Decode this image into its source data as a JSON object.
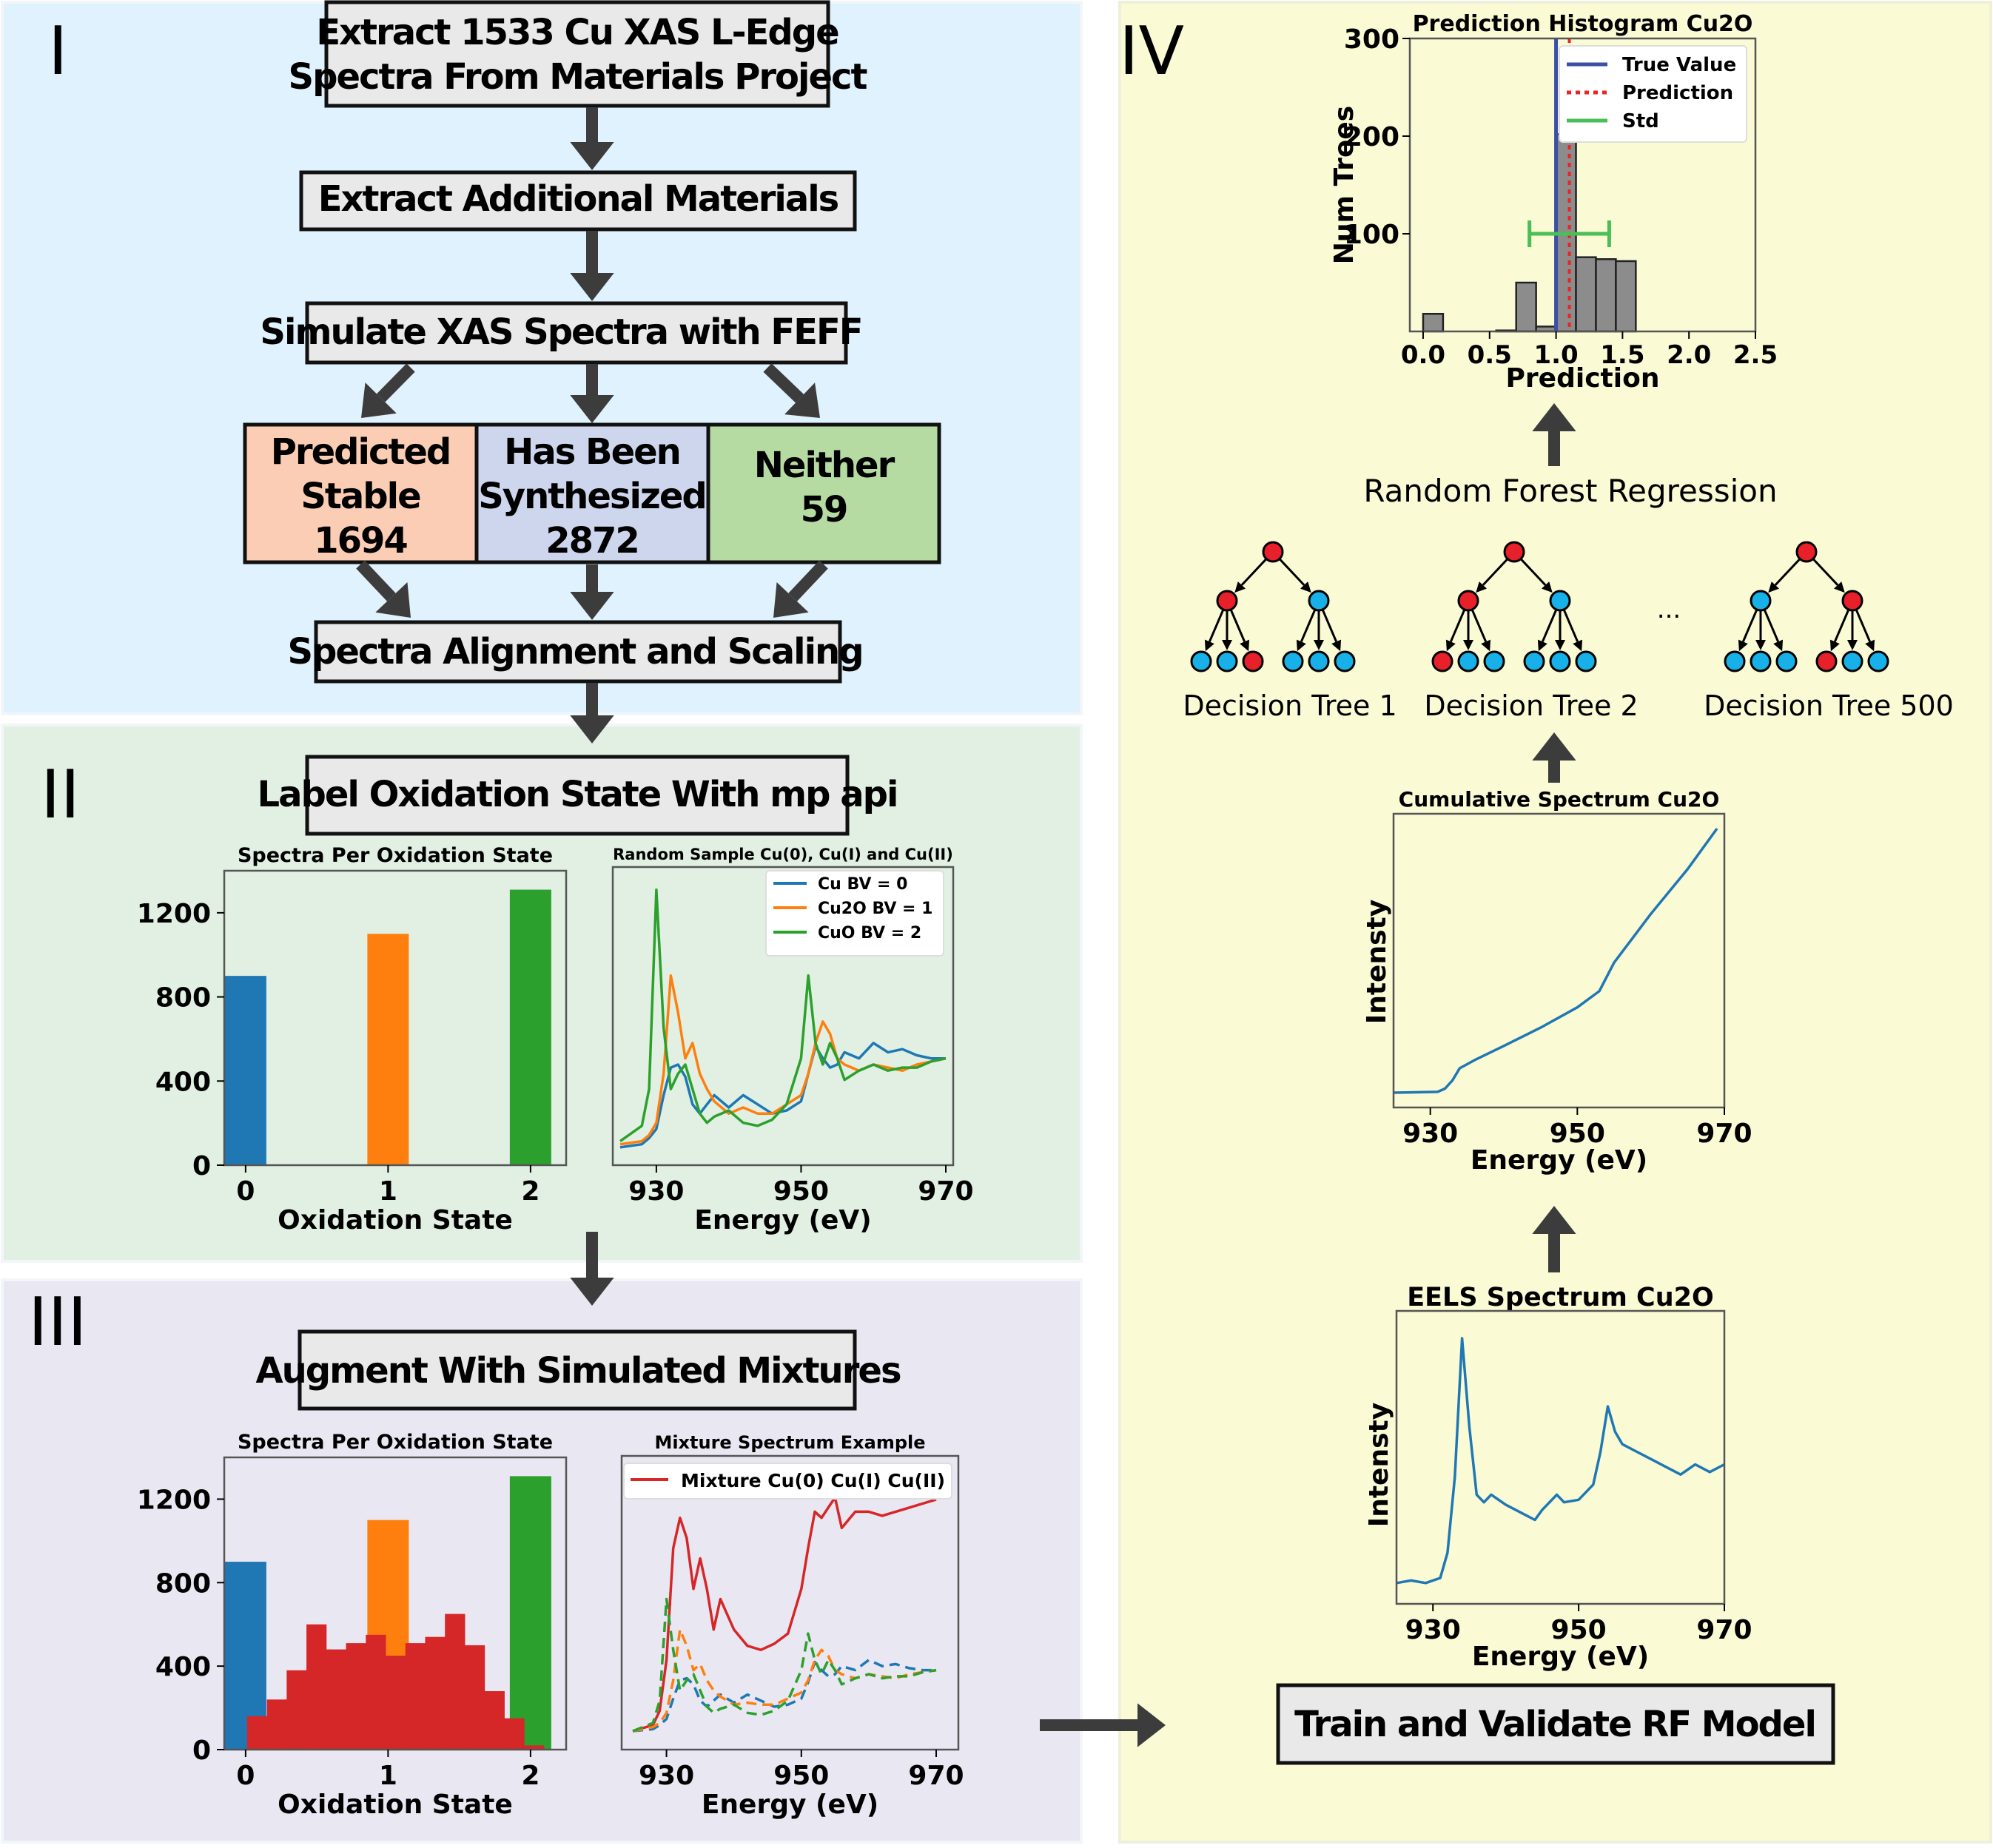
{
  "panels": {
    "p1": {
      "numeral": "I",
      "color": "#e0f2fd"
    },
    "p2": {
      "numeral": "II",
      "color": "#e1f0e3"
    },
    "p3": {
      "numeral": "III",
      "color": "#e9e7f2"
    },
    "p4": {
      "numeral": "IV",
      "color": "#fafad5"
    }
  },
  "boxes": {
    "extract_mp": {
      "line1": "Extract 1533 Cu XAS L-Edge",
      "line2": "Spectra From Materials Project"
    },
    "extract_add": {
      "label": "Extract Additional Materials"
    },
    "simulate": {
      "label": "Simulate XAS Spectra with FEFF"
    },
    "predicted": {
      "line1": "Predicted",
      "line2": "Stable",
      "line3": "1694",
      "color": "#fbcdb4"
    },
    "synth": {
      "line1": "Has Been",
      "line2": "Synthesized",
      "line3": "2872",
      "color": "#cdd6ec"
    },
    "neither": {
      "line1": "Neither",
      "line2": "59",
      "color": "#b6dba2"
    },
    "align": {
      "label": "Spectra Alignment and Scaling"
    },
    "label_ox": {
      "label": "Label Oxidation State With mp api"
    },
    "augment": {
      "label": "Augment With Simulated Mixtures"
    },
    "train": {
      "label": "Train and Validate RF Model"
    }
  },
  "colors": {
    "blue": "#1f77b4",
    "orange": "#ff7f0e",
    "green": "#2ca02c",
    "red": "#d62728",
    "box": "#e9e9ea",
    "arrow": "#3c3c3c",
    "tree_red": "#e8202a",
    "tree_blue": "#17b0e8"
  },
  "chart_data": [
    {
      "type": "bar",
      "title": "Spectra Per Oxidation State",
      "xlabel": "Oxidation State",
      "ylabel": "",
      "categories": [
        "0",
        "1",
        "2"
      ],
      "values": [
        900,
        1100,
        1310
      ],
      "ylim": [
        0,
        1400
      ],
      "yticks": [
        "0",
        "400",
        "800",
        "1200"
      ]
    },
    {
      "type": "line",
      "title": "Random Sample Cu(0), Cu(I) and Cu(II)",
      "xlabel": "Energy (eV)",
      "ylabel": "",
      "xticks": [
        "930",
        "950",
        "970"
      ],
      "xlim": [
        925,
        970
      ],
      "legend": "top-right",
      "series": [
        {
          "name": "Cu BV = 0",
          "x": [
            925,
            928,
            929,
            930,
            931,
            932,
            933,
            934,
            935,
            936,
            937,
            938,
            940,
            942,
            944,
            946,
            948,
            950,
            951,
            952,
            953,
            954,
            955,
            956,
            958,
            960,
            962,
            964,
            966,
            968,
            970
          ],
          "y": [
            0.1,
            0.2,
            0.4,
            0.7,
            1.8,
            2.7,
            2.8,
            2.4,
            1.5,
            1.2,
            1.5,
            1.8,
            1.4,
            1.8,
            1.5,
            1.2,
            1.3,
            1.6,
            2.5,
            3.4,
            3.0,
            2.7,
            2.8,
            3.2,
            3.0,
            3.5,
            3.2,
            3.3,
            3.1,
            3.0,
            3.0
          ]
        },
        {
          "name": "Cu2O BV = 1",
          "x": [
            925,
            928,
            929,
            930,
            931,
            932,
            933,
            934,
            935,
            936,
            937,
            938,
            940,
            942,
            944,
            946,
            948,
            950,
            951,
            952,
            953,
            954,
            955,
            956,
            958,
            960,
            962,
            964,
            966,
            968,
            970
          ],
          "y": [
            0.2,
            0.3,
            0.5,
            0.9,
            2.5,
            5.7,
            4.5,
            3.0,
            3.5,
            2.5,
            2.0,
            1.6,
            1.2,
            1.4,
            1.2,
            1.2,
            1.5,
            1.8,
            2.5,
            3.5,
            4.2,
            3.8,
            3.0,
            2.8,
            2.6,
            2.8,
            2.7,
            2.6,
            2.8,
            2.9,
            3.0
          ]
        },
        {
          "name": "CuO BV = 2",
          "x": [
            925,
            928,
            929,
            930,
            931,
            932,
            933,
            934,
            935,
            936,
            937,
            938,
            940,
            942,
            944,
            946,
            948,
            950,
            951,
            952,
            953,
            954,
            955,
            956,
            958,
            960,
            962,
            964,
            966,
            968,
            970
          ],
          "y": [
            0.3,
            0.8,
            2.0,
            8.5,
            4.0,
            2.0,
            2.5,
            2.8,
            2.0,
            1.2,
            0.9,
            1.1,
            1.3,
            0.9,
            0.8,
            1.0,
            1.5,
            3.0,
            5.7,
            3.5,
            2.8,
            3.5,
            3.0,
            2.3,
            2.6,
            2.8,
            2.6,
            2.7,
            2.7,
            2.9,
            3.0
          ]
        }
      ]
    },
    {
      "type": "bar",
      "title": "Spectra Per Oxidation State",
      "xlabel": "Oxidation State",
      "ylabel": "",
      "categories": [
        "0",
        "1",
        "2"
      ],
      "values": [
        900,
        1100,
        1310
      ],
      "ylim": [
        0,
        1400
      ],
      "yticks": [
        "0",
        "400",
        "800",
        "1200"
      ],
      "mixture_bins": [
        160,
        240,
        380,
        600,
        480,
        510,
        550,
        450,
        510,
        540,
        650,
        500,
        280,
        150,
        20
      ]
    },
    {
      "type": "line",
      "title": "Mixture Spectrum Example",
      "xlabel": "Energy (eV)",
      "ylabel": "",
      "xticks": [
        "930",
        "950",
        "970"
      ],
      "xlim": [
        925,
        970
      ],
      "legend": "top",
      "series": [
        {
          "name": "Mixture Cu(0) Cu(I) Cu(II)",
          "x": [
            925,
            928,
            929,
            930,
            931,
            932,
            933,
            934,
            935,
            936,
            937,
            938,
            940,
            942,
            944,
            946,
            948,
            950,
            951,
            952,
            953,
            954,
            955,
            956,
            958,
            960,
            962,
            964,
            966,
            968,
            970
          ],
          "y": [
            0.0,
            0.3,
            1.0,
            3.5,
            9.0,
            10.5,
            9.5,
            7.0,
            8.5,
            7.0,
            5.0,
            6.5,
            5.0,
            4.2,
            4.0,
            4.3,
            4.8,
            7.0,
            9.0,
            10.8,
            10.5,
            11.0,
            11.5,
            10.0,
            10.8,
            10.8,
            10.6,
            10.8,
            11.0,
            11.2,
            11.4
          ]
        },
        {
          "name": "",
          "x": [
            925,
            928,
            929,
            930,
            931,
            932,
            933,
            934,
            935,
            936,
            937,
            938,
            940,
            942,
            944,
            946,
            948,
            950,
            951,
            952,
            953,
            954,
            955,
            956,
            958,
            960,
            962,
            964,
            966,
            968,
            970
          ],
          "y": [
            0.0,
            0.1,
            0.3,
            0.6,
            1.6,
            2.5,
            2.6,
            2.3,
            1.5,
            1.2,
            1.5,
            1.8,
            1.4,
            1.8,
            1.5,
            1.2,
            1.3,
            1.6,
            2.4,
            3.4,
            3.0,
            2.7,
            2.8,
            3.2,
            3.0,
            3.5,
            3.2,
            3.3,
            3.1,
            3.0,
            3.0
          ]
        },
        {
          "name": "",
          "x": [
            925,
            928,
            929,
            930,
            931,
            932,
            933,
            934,
            935,
            936,
            937,
            938,
            940,
            942,
            944,
            946,
            948,
            950,
            951,
            952,
            953,
            954,
            955,
            956,
            958,
            960,
            962,
            964,
            966,
            968,
            970
          ],
          "y": [
            0.0,
            0.2,
            0.4,
            0.9,
            2.5,
            5.0,
            4.2,
            3.0,
            3.3,
            2.5,
            2.0,
            1.7,
            1.3,
            1.4,
            1.3,
            1.3,
            1.6,
            1.9,
            2.5,
            3.5,
            4.0,
            3.7,
            3.0,
            2.8,
            2.6,
            2.8,
            2.7,
            2.6,
            2.8,
            2.9,
            3.0
          ]
        },
        {
          "name": "",
          "x": [
            925,
            928,
            929,
            930,
            931,
            932,
            933,
            934,
            935,
            936,
            937,
            938,
            940,
            942,
            944,
            946,
            948,
            950,
            951,
            952,
            953,
            954,
            955,
            956,
            958,
            960,
            962,
            964,
            966,
            968,
            970
          ],
          "y": [
            0.0,
            0.4,
            1.5,
            6.5,
            4.0,
            2.0,
            2.5,
            2.8,
            2.0,
            1.2,
            0.9,
            1.1,
            1.3,
            0.9,
            0.8,
            1.0,
            1.5,
            3.0,
            4.8,
            3.5,
            2.8,
            3.5,
            3.0,
            2.3,
            2.6,
            2.8,
            2.6,
            2.7,
            2.7,
            2.9,
            3.0
          ]
        }
      ]
    },
    {
      "type": "bar",
      "title": "Prediction Histogram Cu2O",
      "xlabel": "Prediction",
      "ylabel": "Num Trees",
      "xticks": [
        "0.0",
        "0.5",
        "1.0",
        "1.5",
        "2.0",
        "2.5"
      ],
      "yticks": [
        "100",
        "200",
        "300"
      ],
      "xlim": [
        -0.1,
        2.5
      ],
      "ylim": [
        0,
        300
      ],
      "legend": "top-right",
      "bins": [
        {
          "x0": 0.0,
          "x1": 0.15,
          "value": 18
        },
        {
          "x0": 0.55,
          "x1": 0.7,
          "value": 1
        },
        {
          "x0": 0.7,
          "x1": 0.85,
          "value": 50
        },
        {
          "x0": 0.85,
          "x1": 1.0,
          "value": 5
        },
        {
          "x0": 1.0,
          "x1": 1.15,
          "value": 202
        },
        {
          "x0": 1.15,
          "x1": 1.3,
          "value": 76
        },
        {
          "x0": 1.3,
          "x1": 1.45,
          "value": 74
        },
        {
          "x0": 1.45,
          "x1": 1.6,
          "value": 72
        }
      ],
      "true_value": 1.0,
      "prediction": 1.1,
      "std_range": [
        0.8,
        1.4
      ],
      "std_level": 100,
      "legend_entries": [
        "True Value",
        "Prediction",
        "Std"
      ]
    },
    {
      "type": "line",
      "title": "Cumulative Spectrum Cu2O",
      "xlabel": "Energy (eV)",
      "ylabel": "Intensty",
      "xticks": [
        "930",
        "950",
        "970"
      ],
      "xlim": [
        925,
        970
      ],
      "series": [
        {
          "name": "",
          "x": [
            925,
            931,
            932,
            933,
            934,
            936,
            940,
            945,
            950,
            953,
            955,
            960,
            965,
            969
          ],
          "y": [
            0,
            0.2,
            1,
            3,
            6,
            8,
            11.5,
            16,
            21,
            25,
            32,
            44,
            55,
            65
          ]
        }
      ]
    },
    {
      "type": "line",
      "title": "EELS Spectrum Cu2O",
      "xlabel": "Energy (eV)",
      "ylabel": "Intensty",
      "xticks": [
        "930",
        "950",
        "970"
      ],
      "xlim": [
        925,
        970
      ],
      "series": [
        {
          "name": "",
          "x": [
            925,
            927,
            929,
            931,
            932,
            933,
            934,
            935,
            936,
            937,
            938,
            940,
            942,
            944,
            945,
            947,
            948,
            950,
            952,
            953,
            954,
            955,
            956,
            958,
            960,
            962,
            964,
            966,
            968,
            970
          ],
          "y": [
            0.3,
            0.4,
            0.3,
            0.5,
            1.5,
            4.5,
            10,
            6.5,
            3.8,
            3.5,
            3.8,
            3.4,
            3.1,
            2.8,
            3.2,
            3.8,
            3.5,
            3.6,
            4.2,
            5.5,
            7.3,
            6.3,
            5.8,
            5.5,
            5.2,
            4.9,
            4.6,
            5.0,
            4.7,
            5.0
          ]
        }
      ]
    }
  ],
  "panel4": {
    "rf_label": "Random Forest Regression",
    "trees": [
      {
        "label": "Decision Tree 1",
        "root": "red",
        "mid": [
          "red",
          "blue"
        ],
        "leaves": [
          "blue",
          "blue",
          "red",
          "blue",
          "blue",
          "blue"
        ]
      },
      {
        "label": "Decision Tree 2",
        "root": "red",
        "mid": [
          "red",
          "blue"
        ],
        "leaves": [
          "red",
          "blue",
          "blue",
          "blue",
          "blue",
          "blue"
        ]
      },
      {
        "label": "Decision Tree 500",
        "root": "red",
        "mid": [
          "blue",
          "red"
        ],
        "leaves": [
          "blue",
          "blue",
          "blue",
          "red",
          "blue",
          "blue"
        ]
      }
    ],
    "ellipsis": "..."
  }
}
